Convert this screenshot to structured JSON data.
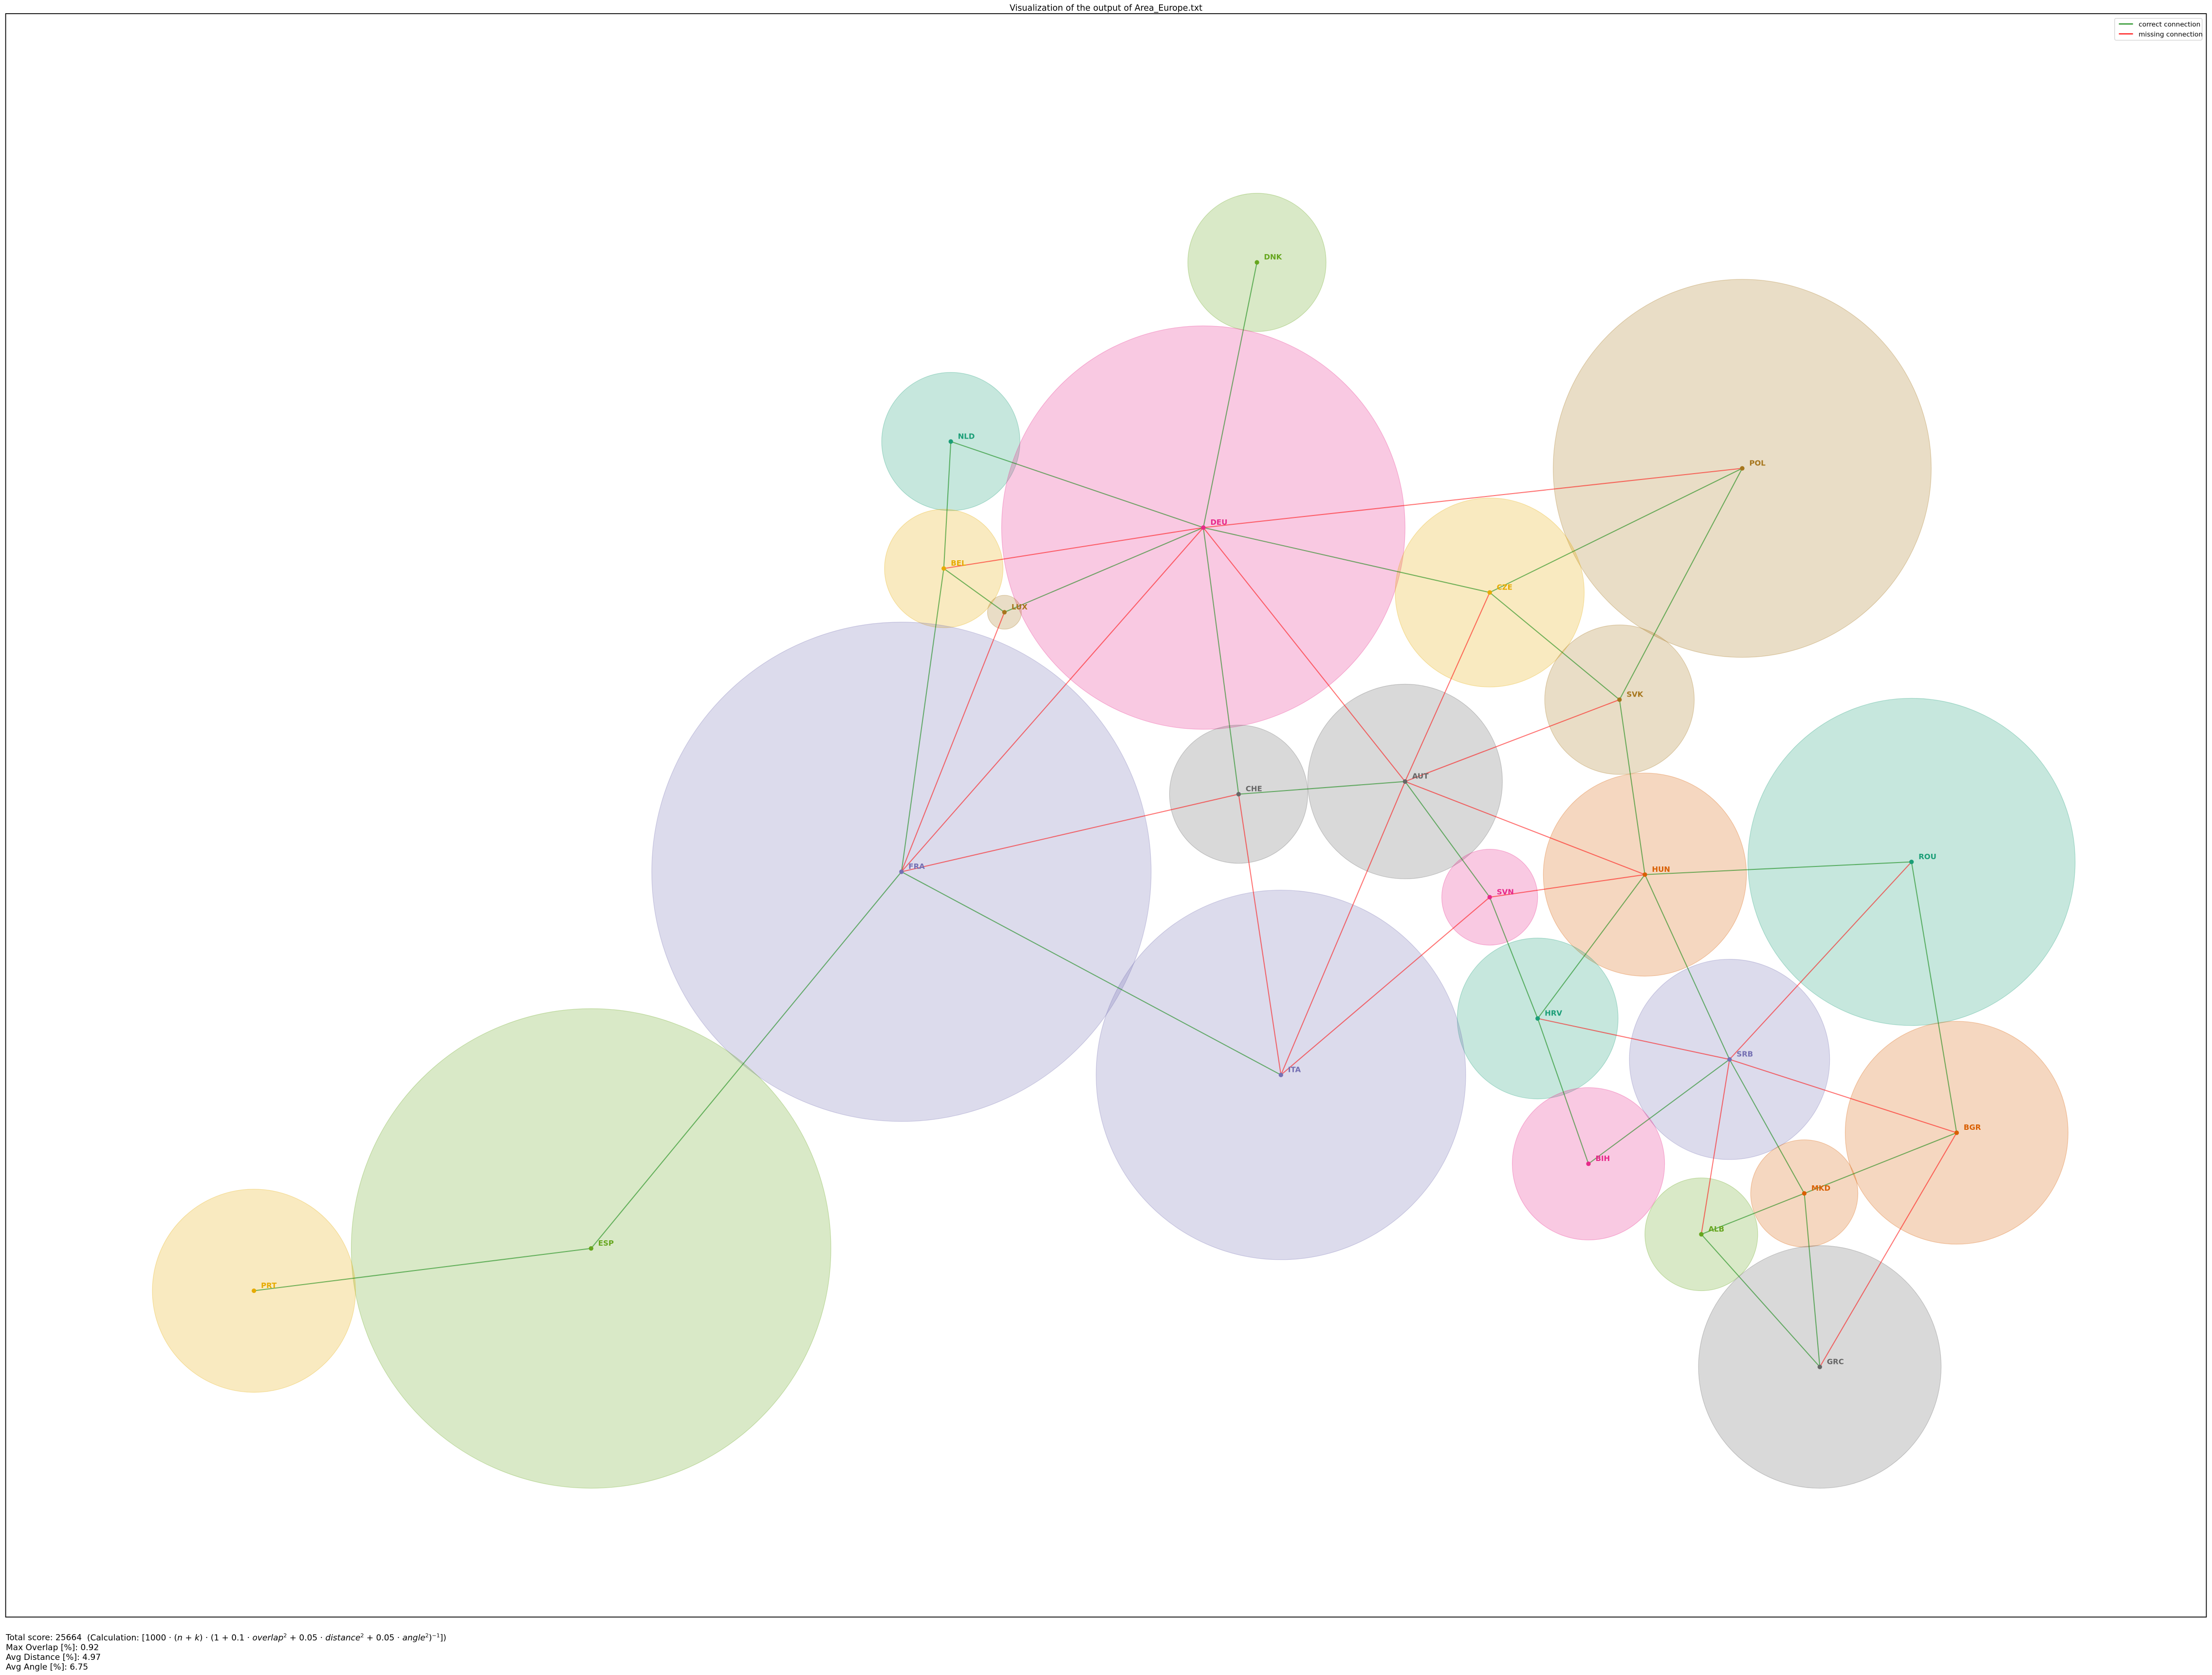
{
  "title": "Visualization of the output of Area_Europe.txt",
  "legend": {
    "placement": "top-right",
    "items": [
      {
        "label": "correct connection",
        "color": "#008000"
      },
      {
        "label": "missing connection",
        "color": "#ff0000"
      }
    ]
  },
  "nodes": [
    {
      "code": "DNK",
      "color": "#66a61e"
    },
    {
      "code": "NLD",
      "color": "#1b9e77"
    },
    {
      "code": "DEU",
      "color": "#e7298a"
    },
    {
      "code": "BEL",
      "color": "#e6ab02"
    },
    {
      "code": "LUX",
      "color": "#a6761d"
    },
    {
      "code": "POL",
      "color": "#a6761d"
    },
    {
      "code": "CZE",
      "color": "#e6ab02"
    },
    {
      "code": "SVK",
      "color": "#a6761d"
    },
    {
      "code": "CHE",
      "color": "#666666"
    },
    {
      "code": "AUT",
      "color": "#666666"
    },
    {
      "code": "FRA",
      "color": "#7570b3"
    },
    {
      "code": "HUN",
      "color": "#d95f02"
    },
    {
      "code": "ROU",
      "color": "#1b9e77"
    },
    {
      "code": "SVN",
      "color": "#e7298a"
    },
    {
      "code": "HRV",
      "color": "#1b9e77"
    },
    {
      "code": "ITA",
      "color": "#7570b3"
    },
    {
      "code": "SRB",
      "color": "#7570b3"
    },
    {
      "code": "BIH",
      "color": "#e7298a"
    },
    {
      "code": "BGR",
      "color": "#d95f02"
    },
    {
      "code": "MKD",
      "color": "#d95f02"
    },
    {
      "code": "ALB",
      "color": "#66a61e"
    },
    {
      "code": "GRC",
      "color": "#666666"
    },
    {
      "code": "ESP",
      "color": "#66a61e"
    },
    {
      "code": "PRT",
      "color": "#e6ab02"
    }
  ],
  "edges": [
    {
      "from": "DNK",
      "to": "DEU",
      "status": "correct"
    },
    {
      "from": "NLD",
      "to": "DEU",
      "status": "correct"
    },
    {
      "from": "NLD",
      "to": "BEL",
      "status": "correct"
    },
    {
      "from": "BEL",
      "to": "FRA",
      "status": "correct"
    },
    {
      "from": "BEL",
      "to": "LUX",
      "status": "correct"
    },
    {
      "from": "LUX",
      "to": "DEU",
      "status": "correct"
    },
    {
      "from": "DEU",
      "to": "CZE",
      "status": "correct"
    },
    {
      "from": "DEU",
      "to": "CHE",
      "status": "correct"
    },
    {
      "from": "CZE",
      "to": "POL",
      "status": "correct"
    },
    {
      "from": "CZE",
      "to": "SVK",
      "status": "correct"
    },
    {
      "from": "POL",
      "to": "SVK",
      "status": "correct"
    },
    {
      "from": "SVK",
      "to": "HUN",
      "status": "correct"
    },
    {
      "from": "CHE",
      "to": "AUT",
      "status": "correct"
    },
    {
      "from": "AUT",
      "to": "SVN",
      "status": "correct"
    },
    {
      "from": "SVN",
      "to": "HRV",
      "status": "correct"
    },
    {
      "from": "HUN",
      "to": "ROU",
      "status": "correct"
    },
    {
      "from": "HUN",
      "to": "HRV",
      "status": "correct"
    },
    {
      "from": "HUN",
      "to": "SRB",
      "status": "correct"
    },
    {
      "from": "HRV",
      "to": "BIH",
      "status": "correct"
    },
    {
      "from": "BIH",
      "to": "SRB",
      "status": "correct"
    },
    {
      "from": "SRB",
      "to": "MKD",
      "status": "correct"
    },
    {
      "from": "MKD",
      "to": "BGR",
      "status": "correct"
    },
    {
      "from": "MKD",
      "to": "ALB",
      "status": "correct"
    },
    {
      "from": "MKD",
      "to": "GRC",
      "status": "correct"
    },
    {
      "from": "ALB",
      "to": "GRC",
      "status": "correct"
    },
    {
      "from": "ROU",
      "to": "BGR",
      "status": "correct"
    },
    {
      "from": "FRA",
      "to": "ITA",
      "status": "correct"
    },
    {
      "from": "FRA",
      "to": "ESP",
      "status": "correct"
    },
    {
      "from": "ESP",
      "to": "PRT",
      "status": "correct"
    },
    {
      "from": "BEL",
      "to": "DEU",
      "status": "missing"
    },
    {
      "from": "DEU",
      "to": "POL",
      "status": "missing"
    },
    {
      "from": "DEU",
      "to": "FRA",
      "status": "missing"
    },
    {
      "from": "LUX",
      "to": "FRA",
      "status": "missing"
    },
    {
      "from": "DEU",
      "to": "AUT",
      "status": "missing"
    },
    {
      "from": "FRA",
      "to": "CHE",
      "status": "missing"
    },
    {
      "from": "CHE",
      "to": "ITA",
      "status": "missing"
    },
    {
      "from": "AUT",
      "to": "CZE",
      "status": "missing"
    },
    {
      "from": "AUT",
      "to": "SVK",
      "status": "missing"
    },
    {
      "from": "AUT",
      "to": "HUN",
      "status": "missing"
    },
    {
      "from": "AUT",
      "to": "ITA",
      "status": "missing"
    },
    {
      "from": "ITA",
      "to": "SVN",
      "status": "missing"
    },
    {
      "from": "SVN",
      "to": "HUN",
      "status": "missing"
    },
    {
      "from": "HRV",
      "to": "SRB",
      "status": "missing"
    },
    {
      "from": "SRB",
      "to": "BGR",
      "status": "missing"
    },
    {
      "from": "SRB",
      "to": "ROU",
      "status": "missing"
    },
    {
      "from": "SRB",
      "to": "ALB",
      "status": "missing"
    },
    {
      "from": "BGR",
      "to": "GRC",
      "status": "missing"
    }
  ],
  "footer": {
    "score_label": "Total score: 25664",
    "calc_prefix": "(Calculation: [1000 · (",
    "calc_formula_parts": [
      "n",
      " + ",
      "k",
      ") · (1 + 0.1 · ",
      "overlap",
      "2",
      " + 0.05 · ",
      "distance",
      "2",
      " + 0.05 · ",
      "angle",
      "2",
      ")",
      "−1",
      "])"
    ],
    "max_overlap": "Max Overlap [%]: 0.92",
    "avg_distance": "Avg Distance [%]: 4.97",
    "avg_angle": "Avg Angle [%]: 6.75"
  }
}
